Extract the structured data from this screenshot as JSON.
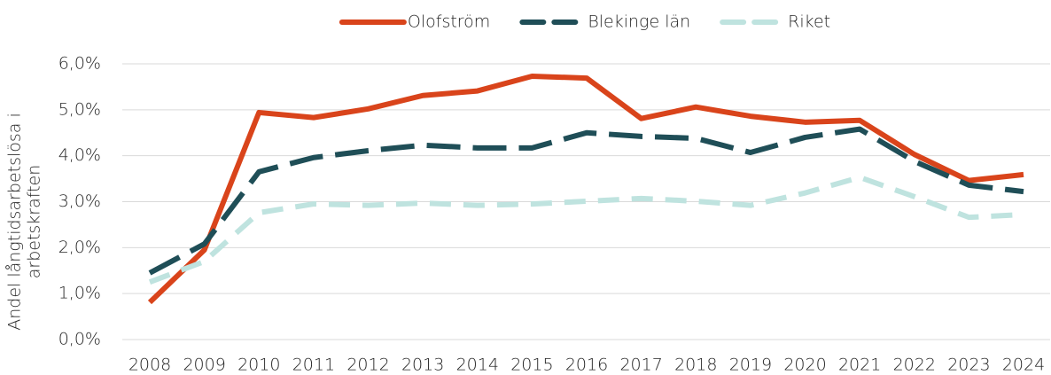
{
  "chart_data": {
    "type": "line",
    "ylabel": [
      "Andel långtidsarbetslösa i",
      "arbetskraften"
    ],
    "categories": [
      "2008",
      "2009",
      "2010",
      "2011",
      "2012",
      "2013",
      "2014",
      "2015",
      "2016",
      "2017",
      "2018",
      "2019",
      "2020",
      "2021",
      "2022",
      "2023",
      "2024"
    ],
    "series": [
      {
        "name": "Olofström",
        "color": "#d9441b",
        "values": [
          0.81,
          1.95,
          4.94,
          4.83,
          5.02,
          5.31,
          5.41,
          5.73,
          5.69,
          4.81,
          5.06,
          4.86,
          4.73,
          4.77,
          4.03,
          3.46,
          3.59
        ]
      },
      {
        "name": "Blekinge län",
        "color": "#1f4e57",
        "values": [
          1.45,
          2.08,
          3.65,
          3.96,
          4.11,
          4.23,
          4.17,
          4.17,
          4.5,
          4.42,
          4.38,
          4.07,
          4.4,
          4.58,
          3.88,
          3.36,
          3.22
        ]
      },
      {
        "name": "Riket",
        "color": "#bfe3df",
        "values": [
          1.25,
          1.7,
          2.76,
          2.95,
          2.92,
          2.97,
          2.92,
          2.95,
          3.01,
          3.07,
          3.01,
          2.92,
          3.19,
          3.53,
          3.11,
          2.66,
          2.72
        ]
      }
    ],
    "ylim": [
      0,
      6
    ],
    "yticks": [
      {
        "value": 0,
        "label": "0,0%"
      },
      {
        "value": 1,
        "label": "1,0%"
      },
      {
        "value": 2,
        "label": "2,0%"
      },
      {
        "value": 3,
        "label": "3,0%"
      },
      {
        "value": 4,
        "label": "4,0%"
      },
      {
        "value": 5,
        "label": "5,0%"
      },
      {
        "value": 6,
        "label": "6,0%"
      }
    ],
    "grid": true,
    "legend": "top"
  }
}
